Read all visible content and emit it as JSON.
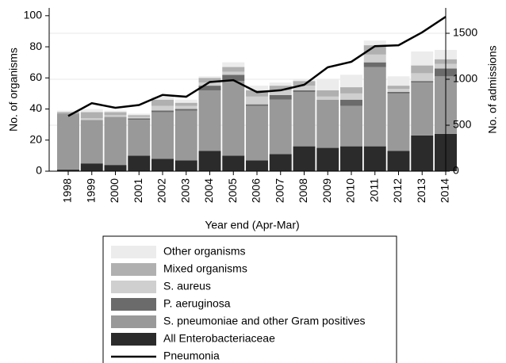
{
  "chart_data": {
    "type": "bar",
    "stacked": true,
    "x_label": "Year end (Apr-Mar)",
    "y_label": "No. of organisms",
    "y2_label": "No. of admissions",
    "categories": [
      "1998",
      "1999",
      "2000",
      "2001",
      "2002",
      "2003",
      "2004",
      "2005",
      "2006",
      "2007",
      "2008",
      "2009",
      "2010",
      "2011",
      "2012",
      "2013",
      "2014"
    ],
    "ylim": [
      0,
      105
    ],
    "yticks": [
      0,
      20,
      40,
      60,
      80,
      100
    ],
    "y2lim": [
      0,
      1776
    ],
    "y2ticks": [
      0,
      500,
      1000,
      1500
    ],
    "grid": true,
    "legend_position": "bottom",
    "series": [
      {
        "name": "All Enterobacteriaceae",
        "color": "#2b2b2b",
        "values": [
          1,
          5,
          4,
          10,
          8,
          7,
          13,
          10,
          7,
          11,
          16,
          15,
          16,
          16,
          13,
          23,
          24
        ]
      },
      {
        "name": "S. pneumoniae and other Gram positives",
        "color": "#999999",
        "values": [
          36,
          28,
          31,
          23,
          30,
          32,
          39,
          48,
          35,
          35,
          35,
          31,
          26,
          51,
          37,
          34,
          37
        ]
      },
      {
        "name": "P. aeruginosa",
        "color": "#6b6b6b",
        "values": [
          0,
          0,
          0,
          1,
          1,
          1,
          3,
          4,
          1,
          3,
          1,
          0,
          4,
          3,
          1,
          1,
          5
        ]
      },
      {
        "name": "S. aureus",
        "color": "#cfcfcf",
        "values": [
          0,
          1,
          1,
          1,
          3,
          2,
          2,
          2,
          5,
          3,
          3,
          2,
          4,
          5,
          2,
          5,
          3
        ]
      },
      {
        "name": "Mixed organisms",
        "color": "#b0b0b0",
        "values": [
          1,
          4,
          2,
          1,
          4,
          2,
          3,
          3,
          4,
          3,
          3,
          4,
          4,
          6,
          2,
          5,
          3
        ]
      },
      {
        "name": "Other organisms",
        "color": "#ececec",
        "values": [
          1,
          2,
          1,
          1,
          2,
          2,
          1,
          3,
          3,
          2,
          1,
          7,
          8,
          3,
          6,
          9,
          6
        ]
      },
      {
        "name": "Pneumonia",
        "type": "line",
        "axis": "y2",
        "color": "#000000",
        "values": [
          600,
          740,
          690,
          720,
          830,
          810,
          970,
          990,
          860,
          880,
          940,
          1130,
          1190,
          1360,
          1370,
          1510,
          1680
        ]
      }
    ]
  }
}
